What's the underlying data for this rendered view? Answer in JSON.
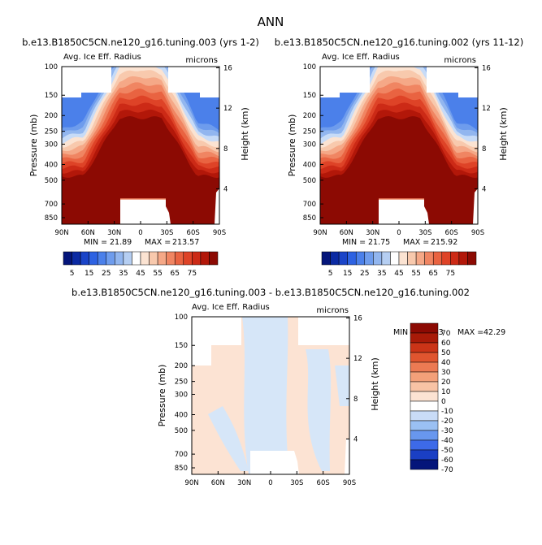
{
  "page_title": "ANN",
  "colors": {
    "pos": [
      "#fbe3d2",
      "#f8c9ad",
      "#f5a887",
      "#f08562",
      "#e96341",
      "#de4327",
      "#cc2a16",
      "#b21709",
      "#8c0a03"
    ],
    "neg": [
      "#d3e3f6",
      "#b5cef2",
      "#92b6ef",
      "#6e9ced",
      "#4b80ea",
      "#2d62e2",
      "#1a44c8",
      "#0b2aa3",
      "#04157a"
    ],
    "abs": [
      "#04157a",
      "#1a3fc4",
      "#3d6ae8",
      "#6897ee",
      "#9ac0f3",
      "#c9dcf7",
      "#ffffff",
      "#fce3d3",
      "#f8c3a5",
      "#f3a079",
      "#ec7a53",
      "#e0552f",
      "#cb3417",
      "#a81a08",
      "#8c0a03"
    ]
  },
  "chart_data": [
    {
      "id": "left",
      "type": "heatmap",
      "title": "b.e13.B1850C5CN.ne120_g16.tuning.003 (yrs 1-2)",
      "field": "Avg. Ice Eff. Radius",
      "units": "microns",
      "ylabel": "Pressure (mb)",
      "y2label": "Height (km)",
      "x_ticks": [
        "90N",
        "60N",
        "30N",
        "0",
        "30S",
        "60S",
        "90S"
      ],
      "y_ticks": [
        "100",
        "150",
        "200",
        "250",
        "300",
        "400",
        "500",
        "700",
        "850"
      ],
      "y2_ticks": [
        "16",
        "12",
        "8",
        "4"
      ],
      "min_label": "MIN =",
      "min": "21.89",
      "max_label": "MAX =",
      "max": "213.57",
      "colorbar_labels": [
        "5",
        "15",
        "25",
        "35",
        "45",
        "55",
        "65",
        "75"
      ]
    },
    {
      "id": "right",
      "type": "heatmap",
      "title": "b.e13.B1850C5CN.ne120_g16.tuning.002 (yrs 11-12)",
      "field": "Avg. Ice Eff. Radius",
      "units": "microns",
      "ylabel": "Pressure (mb)",
      "y2label": "Height (km)",
      "x_ticks": [
        "90N",
        "60N",
        "30N",
        "0",
        "30S",
        "60S",
        "90S"
      ],
      "y_ticks": [
        "100",
        "150",
        "200",
        "250",
        "300",
        "400",
        "500",
        "700",
        "850"
      ],
      "y2_ticks": [
        "16",
        "12",
        "8",
        "4"
      ],
      "min_label": "MIN =",
      "min": "21.75",
      "max_label": "MAX =",
      "max": "215.92",
      "colorbar_labels": [
        "5",
        "15",
        "25",
        "35",
        "45",
        "55",
        "65",
        "75"
      ]
    },
    {
      "id": "diff",
      "type": "heatmap",
      "title": "b.e13.B1850C5CN.ne120_g16.tuning.003 - b.e13.B1850C5CN.ne120_g16.tuning.002",
      "field": "Avg. Ice Eff. Radius",
      "units": "microns",
      "ylabel": "Pressure (mb)",
      "y2label": "Height (km)",
      "x_ticks": [
        "90N",
        "60N",
        "30N",
        "0",
        "30S",
        "60S",
        "90S"
      ],
      "y_ticks": [
        "100",
        "150",
        "200",
        "250",
        "300",
        "400",
        "500",
        "700",
        "850"
      ],
      "y2_ticks": [
        "16",
        "12",
        "8",
        "4"
      ],
      "min_label": "MIN =",
      "min": "-45.93",
      "max_label": "MAX =",
      "max": "42.29",
      "colorbar_labels": [
        "70",
        "60",
        "50",
        "40",
        "30",
        "20",
        "10",
        "0",
        "-10",
        "-20",
        "-30",
        "-40",
        "-50",
        "-60",
        "-70"
      ]
    }
  ]
}
